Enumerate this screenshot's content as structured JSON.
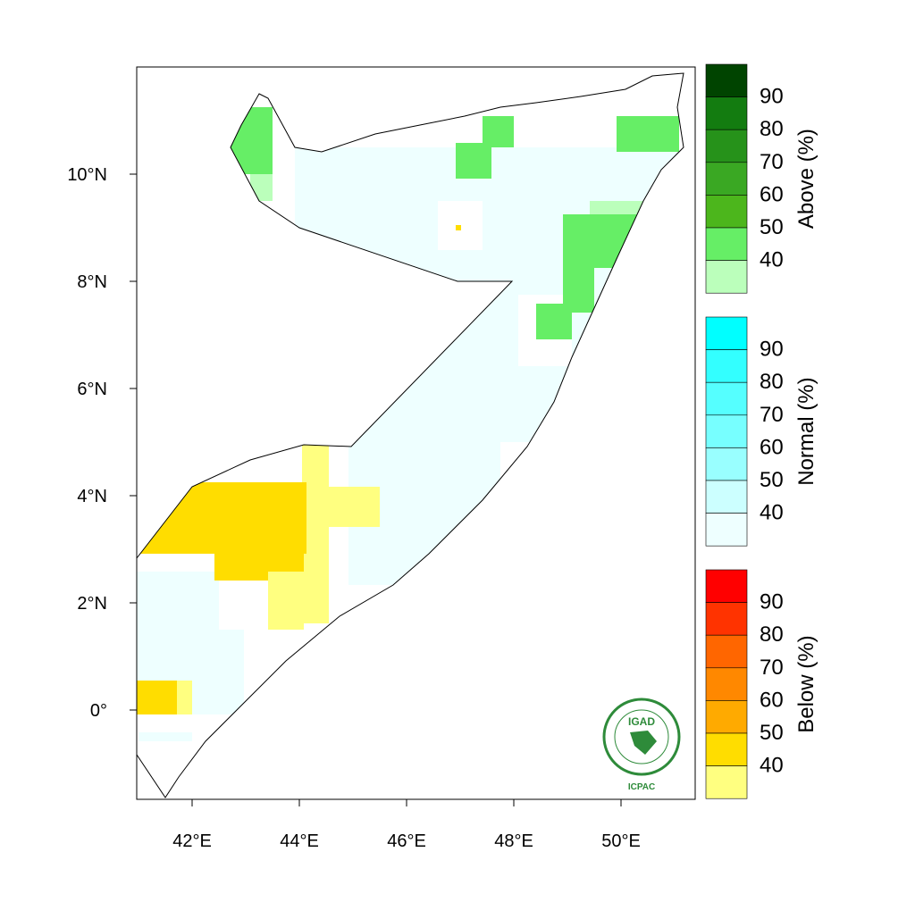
{
  "map": {
    "lon_labels": [
      "42°E",
      "44°E",
      "46°E",
      "48°E",
      "50°E"
    ],
    "lat_labels": [
      "10°N",
      "8°N",
      "6°N",
      "4°N",
      "2°N",
      "0°"
    ],
    "logo": {
      "name": "IGAD",
      "caption": "ICPAC"
    }
  },
  "legends": [
    {
      "title": "Above (%)",
      "labels": [
        90,
        80,
        70,
        60,
        50,
        40
      ],
      "colors": [
        "#004400",
        "#137c10",
        "#26921a",
        "#3aa823",
        "#4cb61c",
        "#66ee66",
        "#bbffbb"
      ]
    },
    {
      "title": "Normal (%)",
      "labels": [
        90,
        80,
        70,
        60,
        50,
        40
      ],
      "colors": [
        "#00ffff",
        "#33ffff",
        "#55ffff",
        "#77ffff",
        "#99ffff",
        "#ccffff",
        "#eeffff"
      ]
    },
    {
      "title": "Below (%)",
      "labels": [
        90,
        80,
        70,
        60,
        50,
        40
      ],
      "colors": [
        "#ff0000",
        "#ff3300",
        "#ff6600",
        "#ff8800",
        "#ffaa00",
        "#ffdd00",
        "#ffff80"
      ]
    }
  ]
}
